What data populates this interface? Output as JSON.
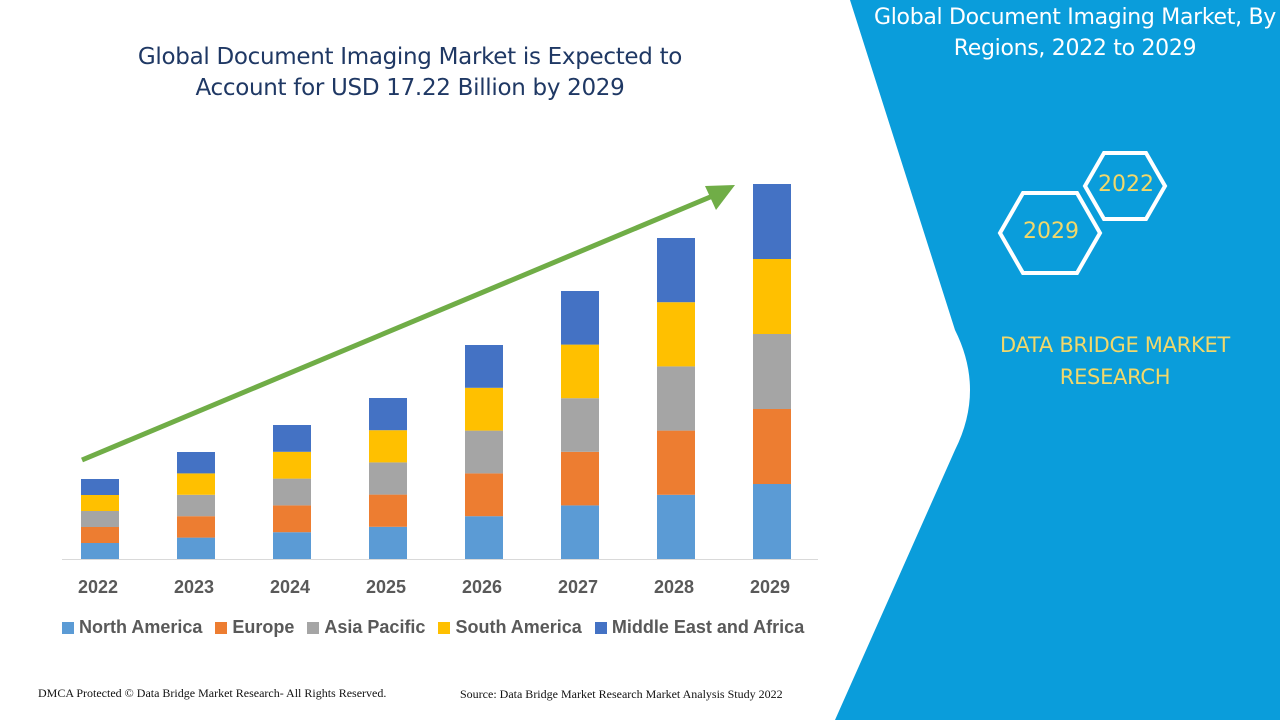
{
  "header": {
    "title": "Global Document Imaging Market is Expected to Account for USD 17.22 Billion by 2029"
  },
  "side_panel": {
    "title": "Global Document Imaging Market, By Regions, 2022 to 2029",
    "hex_labels": [
      "2022",
      "2029"
    ],
    "brand": "DATA BRIDGE MARKET RESEARCH",
    "panel_color": "#0a9ddb",
    "accent_text_color": "#f2d86a"
  },
  "chart_data": {
    "type": "bar",
    "stacked": true,
    "title": "Global Document Imaging Market is Expected to Account for USD 17.22 Billion by 2029",
    "categories": [
      "2022",
      "2023",
      "2024",
      "2025",
      "2026",
      "2027",
      "2028",
      "2029"
    ],
    "series": [
      {
        "name": "North America",
        "color": "#5b9bd5",
        "values": [
          16,
          21.4,
          26.8,
          32.2,
          42.8,
          53.6,
          64.2,
          75
        ]
      },
      {
        "name": "Europe",
        "color": "#ed7d31",
        "values": [
          16,
          21.4,
          26.8,
          32.2,
          42.8,
          53.6,
          64.2,
          75
        ]
      },
      {
        "name": "Asia Pacific",
        "color": "#a5a5a5",
        "values": [
          16,
          21.4,
          26.8,
          32.2,
          42.8,
          53.6,
          64.2,
          75
        ]
      },
      {
        "name": "South America",
        "color": "#ffc000",
        "values": [
          16,
          21.4,
          26.8,
          32.2,
          42.8,
          53.6,
          64.2,
          75
        ]
      },
      {
        "name": "Middle East and Africa",
        "color": "#4472c4",
        "values": [
          16,
          21.4,
          26.8,
          32.2,
          42.8,
          53.6,
          64.2,
          75
        ]
      }
    ],
    "y_axis_shown": false,
    "grid": false,
    "legend_position": "bottom",
    "trend_arrow_color": "#70ad47"
  },
  "footer": {
    "left": "DMCA Protected © Data Bridge Market Research- All Rights Reserved.",
    "right": "Source: Data Bridge Market Research Market Analysis Study 2022"
  }
}
